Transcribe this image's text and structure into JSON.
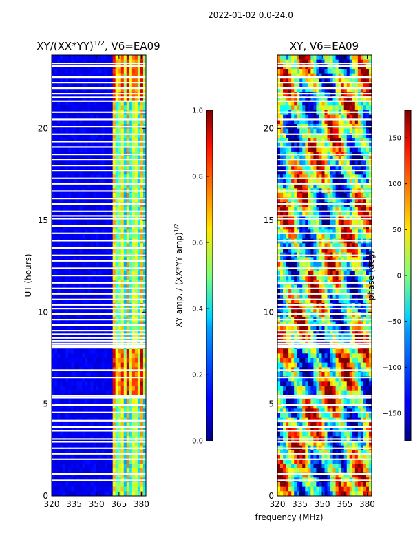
{
  "figure_title": "2022-01-02 0.0-24.0",
  "xlabel_shared": "frequency (MHz)",
  "chart_data": [
    {
      "type": "heatmap",
      "title": "XY/(XX*YY)",
      "title_sup": "1/2",
      "title_suffix": ", V6=EA09",
      "xlabel": "frequency (MHz)",
      "ylabel": "UT (hours)",
      "xlim": [
        320,
        383
      ],
      "ylim": [
        0,
        24
      ],
      "xticks": [
        320,
        335,
        350,
        365,
        380
      ],
      "yticks": [
        0,
        5,
        10,
        15,
        20
      ],
      "colorbar": {
        "label": "XY amp. / (XX*YY amp)",
        "label_sup": "1/2",
        "range": [
          0.0,
          1.0
        ],
        "ticks": [
          "0.0",
          "0.2",
          "0.4",
          "0.6",
          "0.8",
          "1.0"
        ],
        "colormap": "jet"
      },
      "description_values": {
        "low_band_level": 0.08,
        "high_band_start_mhz": 361,
        "high_band_level": 0.45
      }
    },
    {
      "type": "heatmap",
      "title": "XY, V6=EA09",
      "xlabel": "frequency (MHz)",
      "ylabel": "",
      "xlim": [
        320,
        383
      ],
      "ylim": [
        0,
        24
      ],
      "xticks": [
        320,
        335,
        350,
        365,
        380
      ],
      "yticks": [
        0,
        5,
        10,
        15,
        20
      ],
      "colorbar": {
        "label": "phase (deg)",
        "range": [
          -180,
          180
        ],
        "ticks": [
          "150",
          "100",
          "50",
          "0",
          "−50",
          "−100",
          "−150"
        ],
        "tick_values": [
          150,
          100,
          50,
          0,
          -50,
          -100,
          -150
        ],
        "colormap": "jet"
      }
    }
  ],
  "flagged_hours": [
    0.85,
    1.2,
    2.0,
    2.3,
    2.6,
    2.95,
    3.1,
    3.55,
    3.75,
    4.1,
    4.55,
    4.95,
    5.35,
    5.45,
    6.45,
    6.85,
    8.1,
    8.2,
    8.3,
    8.45,
    8.6,
    8.8,
    9.0,
    9.3,
    9.6,
    9.9,
    10.2,
    10.4,
    10.7,
    11.0,
    11.3,
    11.6,
    12.0,
    12.4,
    12.8,
    13.1,
    13.5,
    13.9,
    14.3,
    14.7,
    15.1,
    15.25,
    15.5,
    15.9,
    16.2,
    16.6,
    17.0,
    17.3,
    17.7,
    18.0,
    18.3,
    18.6,
    19.0,
    19.3,
    19.7,
    20.1,
    20.5,
    20.9,
    21.5,
    21.7,
    21.9,
    22.2,
    22.5,
    22.8,
    23.4,
    23.55
  ]
}
